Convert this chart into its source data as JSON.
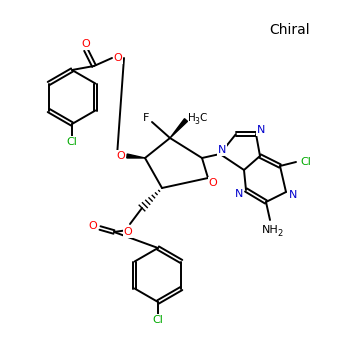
{
  "background_color": "#ffffff",
  "chiral_label": "Chiral",
  "bond_color": "#000000",
  "bond_lw": 1.4,
  "colors": {
    "O": "#ff0000",
    "N": "#0000cc",
    "Cl": "#00aa00",
    "F": "#000000",
    "C": "#000000"
  }
}
